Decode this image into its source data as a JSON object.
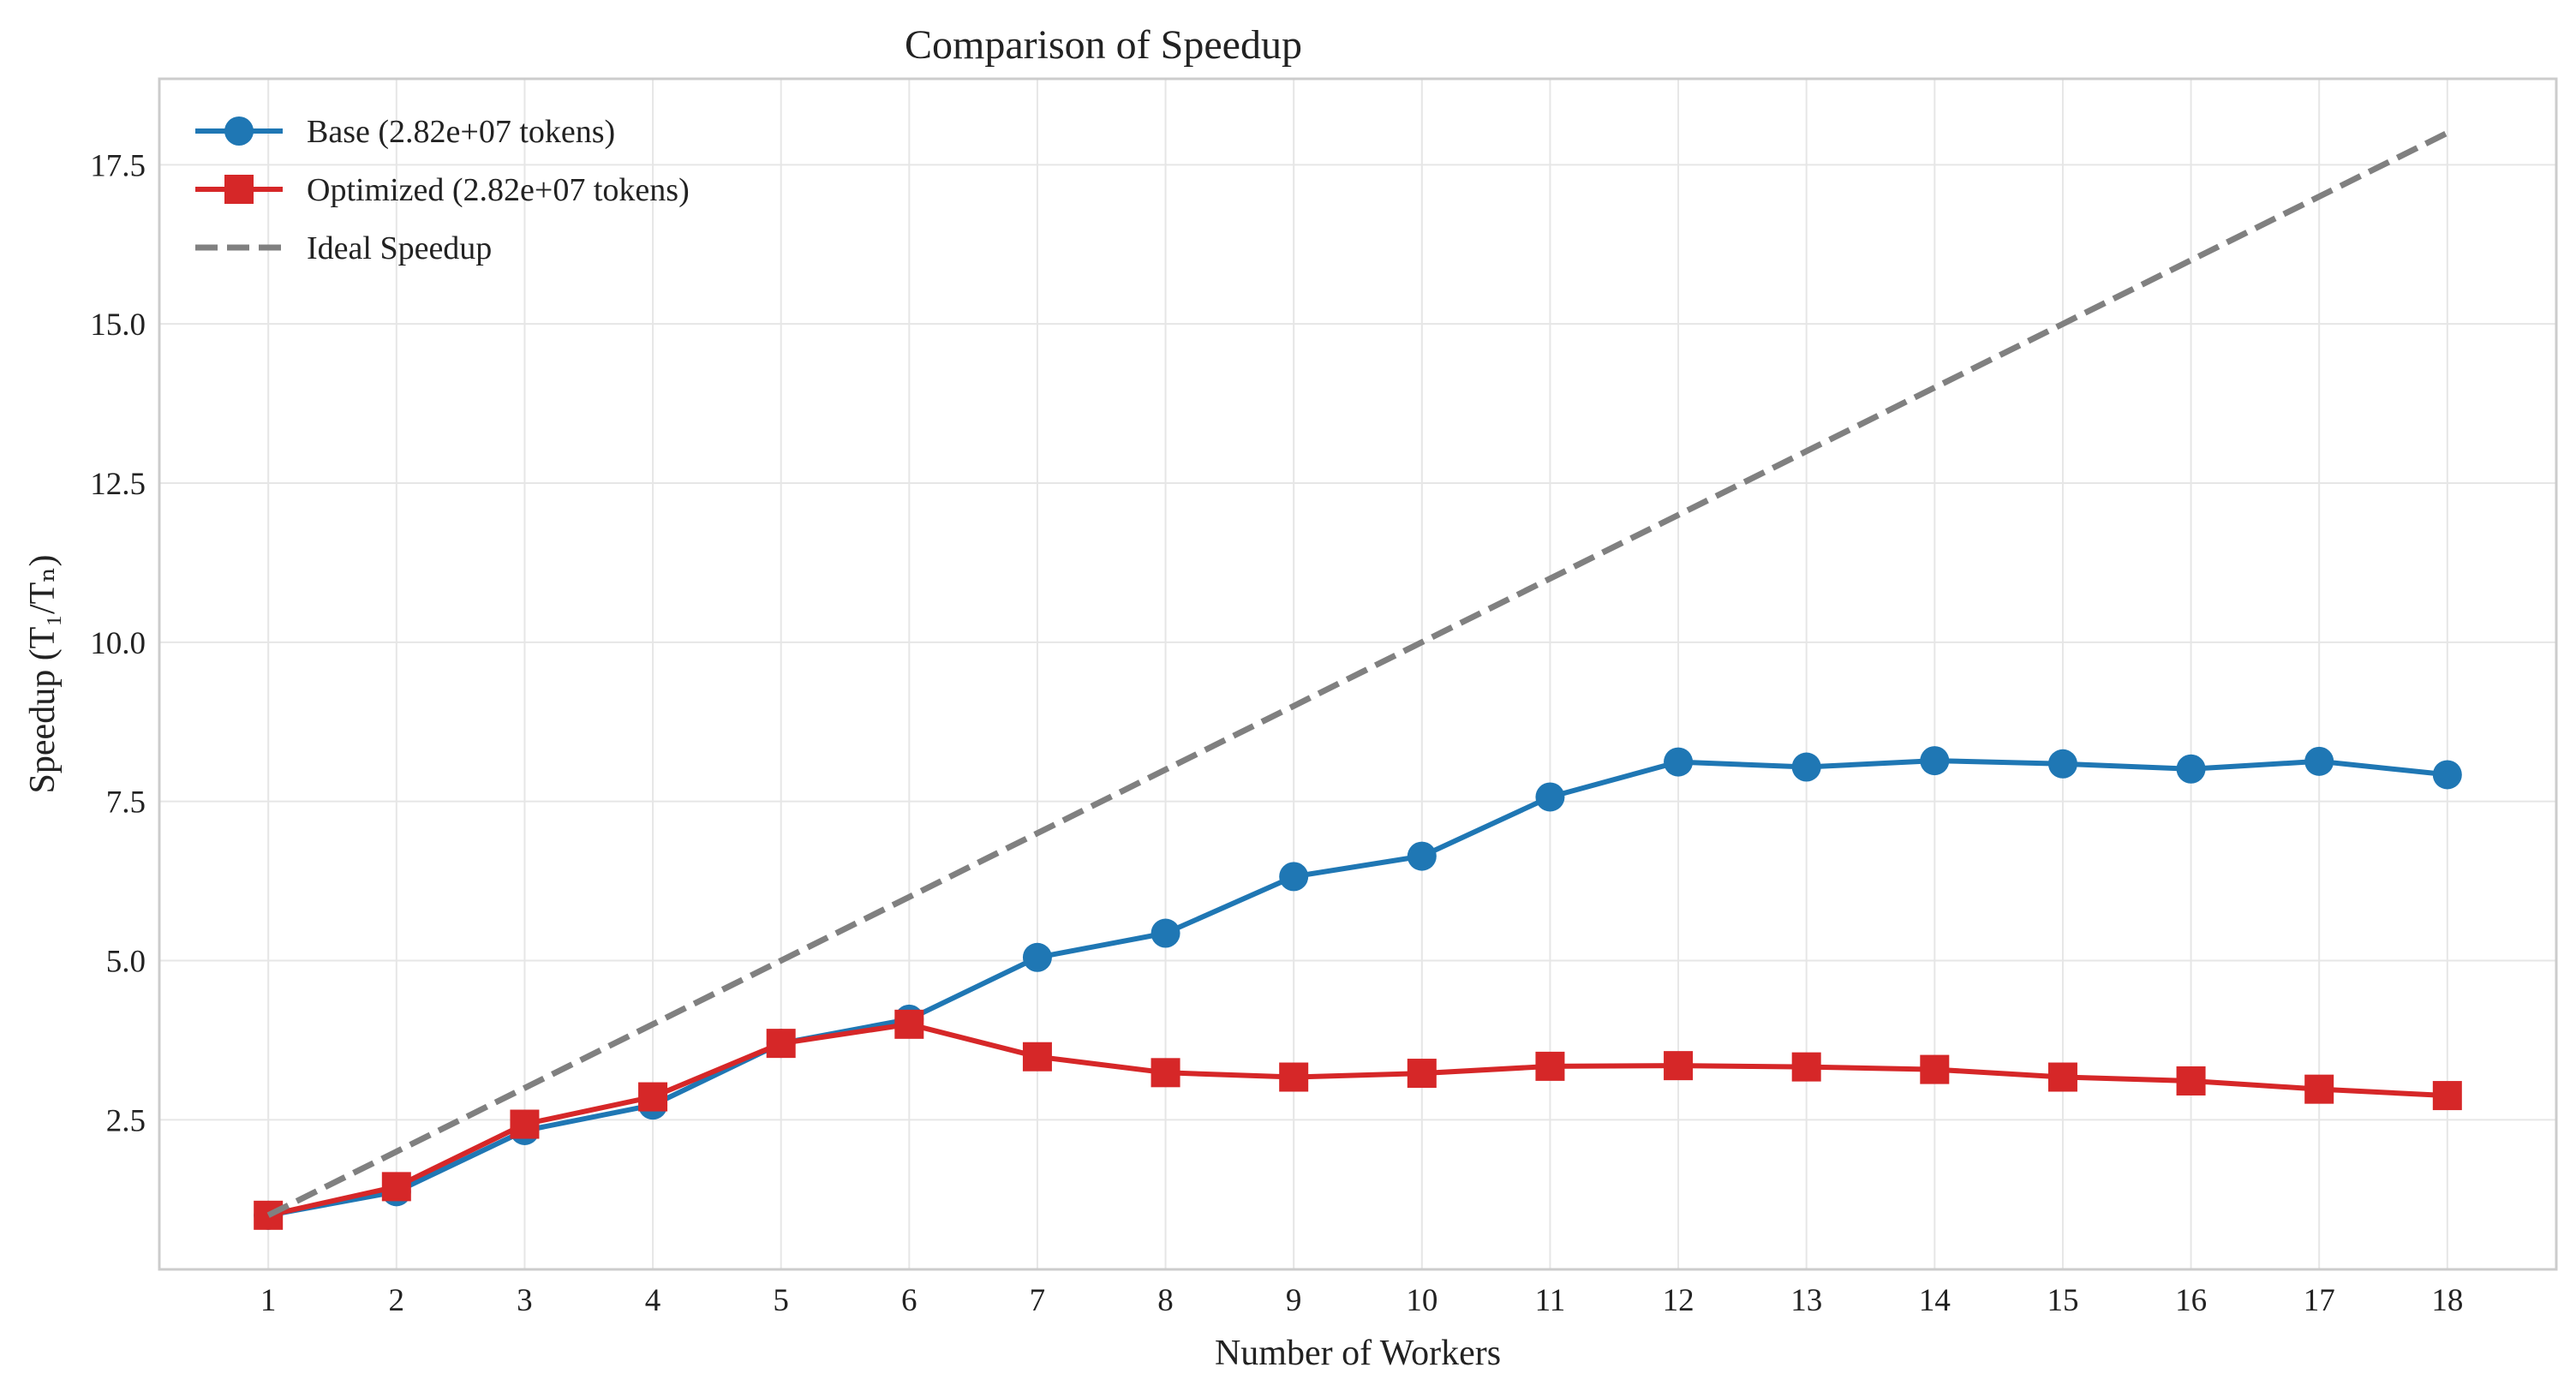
{
  "chart_data": {
    "type": "line",
    "title": "Comparison of Speedup",
    "xlabel": "Number of Workers",
    "ylabel": "Speedup (T₁/Tₙ)",
    "x": [
      1,
      2,
      3,
      4,
      5,
      6,
      7,
      8,
      9,
      10,
      11,
      12,
      13,
      14,
      15,
      16,
      17,
      18
    ],
    "xlim": [
      0.15,
      18.85
    ],
    "ylim": [
      0.15,
      18.85
    ],
    "yticks": [
      "2.5",
      "5.0",
      "7.5",
      "10.0",
      "12.5",
      "15.0",
      "17.5"
    ],
    "grid": true,
    "legend_position": "top-left",
    "series": [
      {
        "name": "Base (2.82e+07 tokens)",
        "marker": "circle",
        "color": "#1f77b4",
        "linestyle": "solid",
        "values": [
          1.0,
          1.37,
          2.33,
          2.73,
          3.7,
          4.08,
          5.05,
          5.43,
          6.32,
          6.64,
          7.57,
          8.12,
          8.04,
          8.14,
          8.09,
          8.01,
          8.13,
          7.92
        ]
      },
      {
        "name": "Optimized (2.82e+07 tokens)",
        "marker": "square",
        "color": "#d62728",
        "linestyle": "solid",
        "values": [
          1.0,
          1.45,
          2.43,
          2.86,
          3.7,
          4.0,
          3.49,
          3.24,
          3.17,
          3.23,
          3.34,
          3.35,
          3.33,
          3.29,
          3.17,
          3.11,
          2.98,
          2.88
        ]
      },
      {
        "name": "Ideal Speedup",
        "marker": "none",
        "color": "#808080",
        "linestyle": "dashed",
        "values": [
          1,
          2,
          3,
          4,
          5,
          6,
          7,
          8,
          9,
          10,
          11,
          12,
          13,
          14,
          15,
          16,
          17,
          18
        ]
      }
    ]
  }
}
